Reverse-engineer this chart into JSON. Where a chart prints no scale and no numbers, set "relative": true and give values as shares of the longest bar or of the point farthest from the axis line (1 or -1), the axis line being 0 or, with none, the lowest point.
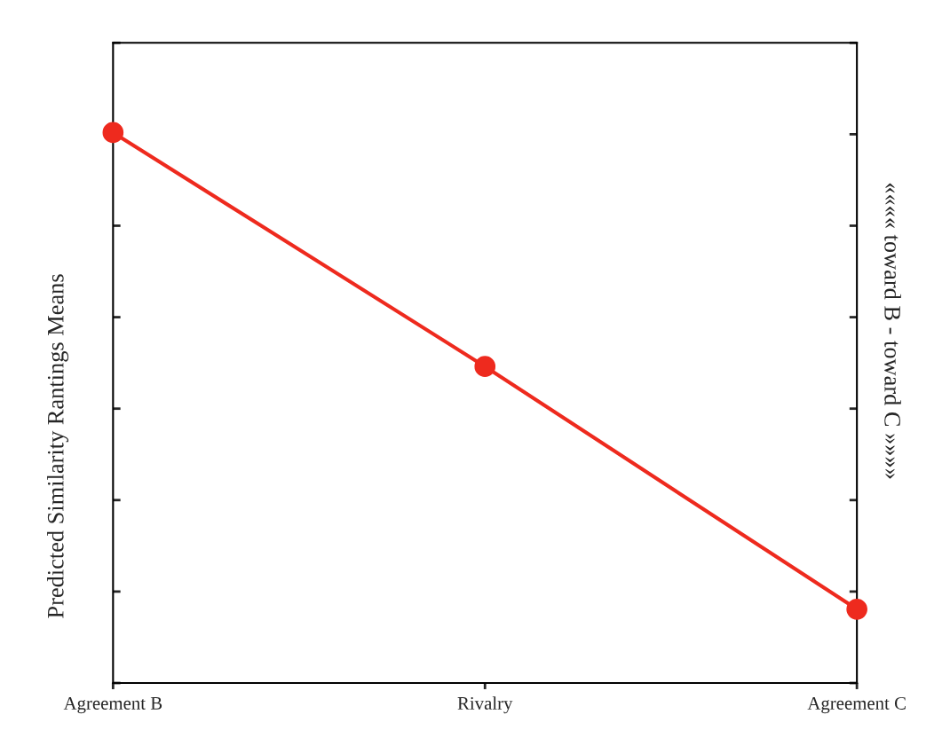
{
  "chart_data": {
    "type": "line",
    "relative": true,
    "categories": [
      "Agreement B",
      "Rivalry",
      "Agreement C"
    ],
    "series": [
      {
        "color": "#ee2a1e",
        "values": [
          1,
          0.575,
          0.134
        ]
      }
    ],
    "ylabel": "Predicted Similarity Rantings Means",
    "y2label": "«««« toward B - toward C »»»»",
    "marker": "circle",
    "line_style": "solid",
    "grid": false,
    "legend": false
  }
}
